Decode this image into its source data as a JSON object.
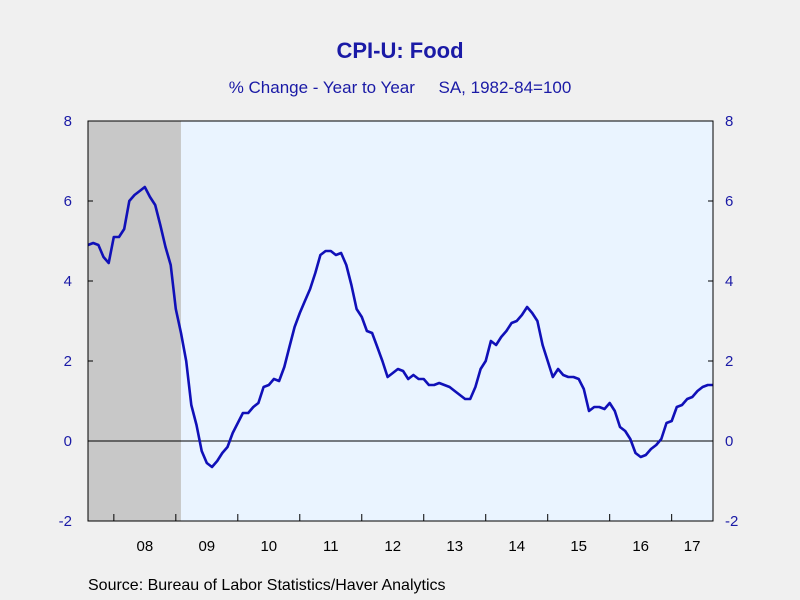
{
  "chart_data": {
    "type": "line",
    "title": "CPI-U: Food",
    "subtitle": "% Change - Year to Year     SA, 1982-84=100",
    "source": "Source:  Bureau of Labor Statistics/Haver Analytics",
    "ylim": [
      -2,
      8
    ],
    "y_ticks": [
      -2,
      0,
      2,
      4,
      6,
      8
    ],
    "y_tick_labels": [
      "-2",
      "0",
      "2",
      "4",
      "6",
      "8"
    ],
    "x_range": [
      2007.583,
      2017.667
    ],
    "x_tick_labels": [
      "08",
      "09",
      "10",
      "11",
      "12",
      "13",
      "14",
      "15",
      "16",
      "17"
    ],
    "recession": {
      "start": 2007.583,
      "end": 2009.083
    },
    "colors": {
      "line": "#1010b8",
      "recession": "#c8c8c8",
      "plot_bg": "#eaf4ff",
      "text": "#1a1aa6"
    },
    "series": [
      {
        "x": [
          2007.583,
          2007.667,
          2007.75,
          2007.833,
          2007.917,
          2008.0,
          2008.083,
          2008.167,
          2008.25,
          2008.333,
          2008.417,
          2008.5,
          2008.583,
          2008.667,
          2008.75,
          2008.833,
          2008.917,
          2009.0,
          2009.083,
          2009.167,
          2009.25,
          2009.333,
          2009.417,
          2009.5,
          2009.583,
          2009.667,
          2009.75,
          2009.833,
          2009.917,
          2010.0,
          2010.083,
          2010.167,
          2010.25,
          2010.333,
          2010.417,
          2010.5,
          2010.583,
          2010.667,
          2010.75,
          2010.833,
          2010.917,
          2011.0,
          2011.083,
          2011.167,
          2011.25,
          2011.333,
          2011.417,
          2011.5,
          2011.583,
          2011.667,
          2011.75,
          2011.833,
          2011.917,
          2012.0,
          2012.083,
          2012.167,
          2012.25,
          2012.333,
          2012.417,
          2012.5,
          2012.583,
          2012.667,
          2012.75,
          2012.833,
          2012.917,
          2013.0,
          2013.083,
          2013.167,
          2013.25,
          2013.333,
          2013.417,
          2013.5,
          2013.583,
          2013.667,
          2013.75,
          2013.833,
          2013.917,
          2014.0,
          2014.083,
          2014.167,
          2014.25,
          2014.333,
          2014.417,
          2014.5,
          2014.583,
          2014.667,
          2014.75,
          2014.833,
          2014.917,
          2015.0,
          2015.083,
          2015.167,
          2015.25,
          2015.333,
          2015.417,
          2015.5,
          2015.583,
          2015.667,
          2015.75,
          2015.833,
          2015.917,
          2016.0,
          2016.083,
          2016.167,
          2016.25,
          2016.333,
          2016.417,
          2016.5,
          2016.583,
          2016.667,
          2016.75,
          2016.833,
          2016.917,
          2017.0,
          2017.083,
          2017.167,
          2017.25,
          2017.333,
          2017.417,
          2017.5,
          2017.583,
          2017.667
        ],
        "values": [
          4.9,
          4.95,
          4.9,
          4.6,
          4.45,
          5.1,
          5.1,
          5.3,
          6.0,
          6.15,
          6.25,
          6.35,
          6.1,
          5.9,
          5.4,
          4.85,
          4.4,
          3.3,
          2.7,
          2.0,
          0.9,
          0.4,
          -0.25,
          -0.55,
          -0.65,
          -0.5,
          -0.3,
          -0.15,
          0.2,
          0.45,
          0.7,
          0.7,
          0.85,
          0.95,
          1.35,
          1.4,
          1.55,
          1.5,
          1.85,
          2.35,
          2.85,
          3.2,
          3.5,
          3.8,
          4.2,
          4.65,
          4.75,
          4.75,
          4.65,
          4.7,
          4.4,
          3.9,
          3.3,
          3.1,
          2.75,
          2.7,
          2.35,
          2.0,
          1.6,
          1.7,
          1.8,
          1.75,
          1.55,
          1.65,
          1.55,
          1.55,
          1.4,
          1.4,
          1.45,
          1.4,
          1.35,
          1.25,
          1.15,
          1.05,
          1.05,
          1.35,
          1.8,
          2.0,
          2.5,
          2.4,
          2.6,
          2.75,
          2.95,
          3.0,
          3.15,
          3.35,
          3.2,
          3.0,
          2.4,
          2.0,
          1.6,
          1.8,
          1.65,
          1.6,
          1.6,
          1.55,
          1.3,
          0.75,
          0.85,
          0.85,
          0.8,
          0.95,
          0.75,
          0.35,
          0.25,
          0.05,
          -0.3,
          -0.4,
          -0.35,
          -0.2,
          -0.1,
          0.05,
          0.45,
          0.5,
          0.85,
          0.9,
          1.05,
          1.1,
          1.25,
          1.35,
          1.4,
          1.4
        ]
      }
    ]
  }
}
